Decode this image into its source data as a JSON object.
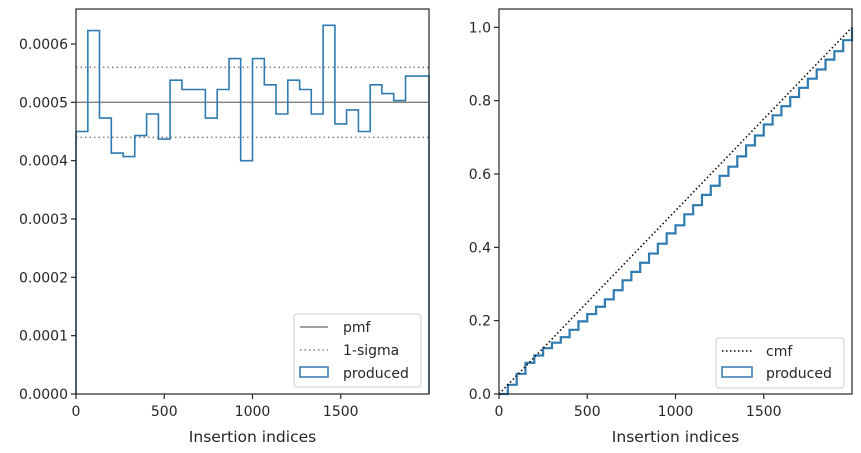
{
  "chart_data": [
    {
      "type": "histogram-step",
      "xlabel": "Insertion indices",
      "ylabel": "",
      "xlim": [
        0,
        2000
      ],
      "ylim": [
        0,
        0.00066
      ],
      "xticks": [
        "0",
        "500",
        "1000",
        "1500"
      ],
      "xtick_values": [
        0,
        500,
        1000,
        1500
      ],
      "yticks": [
        "0.0000",
        "0.0001",
        "0.0002",
        "0.0003",
        "0.0004",
        "0.0005",
        "0.0006"
      ],
      "ytick_values": [
        0,
        0.0001,
        0.0002,
        0.0003,
        0.0004,
        0.0005,
        0.0006
      ],
      "legend_position": "lower-right",
      "reference_lines": [
        {
          "name": "pmf",
          "value": 0.0005,
          "style": "solid",
          "color": "#808080"
        },
        {
          "name": "1-sigma",
          "values": [
            0.00056,
            0.00044
          ],
          "style": "dotted",
          "color": "#808080"
        }
      ],
      "series": [
        {
          "name": "produced",
          "color": "#2f7bb0",
          "bin_edges": [
            0,
            67,
            133,
            200,
            267,
            333,
            400,
            467,
            533,
            600,
            667,
            733,
            800,
            867,
            933,
            1000,
            1067,
            1133,
            1200,
            1267,
            1333,
            1400,
            1467,
            1533,
            1600,
            1667,
            1733,
            1800,
            1867,
            1933,
            2000
          ],
          "values": [
            0.00045,
            0.000623,
            0.000473,
            0.000413,
            0.000407,
            0.000443,
            0.00048,
            0.000437,
            0.000538,
            0.000522,
            0.000522,
            0.000473,
            0.000522,
            0.000575,
            0.0004,
            0.000575,
            0.00053,
            0.00048,
            0.000538,
            0.000522,
            0.00048,
            0.000632,
            0.000463,
            0.000487,
            0.00045,
            0.00053,
            0.000515,
            0.000503,
            0.000545,
            0.000545
          ]
        }
      ]
    },
    {
      "type": "line",
      "xlabel": "Insertion indices",
      "ylabel": "",
      "xlim": [
        0,
        2000
      ],
      "ylim": [
        0,
        1.05
      ],
      "xticks": [
        "0",
        "500",
        "1000",
        "1500"
      ],
      "xtick_values": [
        0,
        500,
        1000,
        1500
      ],
      "yticks": [
        "0.0",
        "0.2",
        "0.4",
        "0.6",
        "0.8",
        "1.0"
      ],
      "ytick_values": [
        0,
        0.2,
        0.4,
        0.6,
        0.8,
        1.0
      ],
      "legend_position": "lower-right",
      "series": [
        {
          "name": "cmf",
          "style": "dotted",
          "color": "#000000",
          "x": [
            0,
            2000
          ],
          "y": [
            0,
            1.0
          ]
        },
        {
          "name": "produced",
          "style": "step",
          "color": "#2f7bb0",
          "x": [
            0,
            50,
            100,
            150,
            200,
            250,
            300,
            350,
            400,
            450,
            500,
            550,
            600,
            650,
            700,
            750,
            800,
            850,
            900,
            950,
            1000,
            1050,
            1100,
            1150,
            1200,
            1250,
            1300,
            1350,
            1400,
            1450,
            1500,
            1550,
            1600,
            1650,
            1700,
            1750,
            1800,
            1850,
            1900,
            1950,
            2000
          ],
          "y": [
            0,
            0.025,
            0.055,
            0.085,
            0.105,
            0.125,
            0.14,
            0.155,
            0.175,
            0.198,
            0.218,
            0.238,
            0.258,
            0.283,
            0.31,
            0.333,
            0.358,
            0.383,
            0.41,
            0.438,
            0.46,
            0.49,
            0.515,
            0.543,
            0.568,
            0.595,
            0.62,
            0.648,
            0.678,
            0.705,
            0.735,
            0.76,
            0.785,
            0.81,
            0.835,
            0.86,
            0.885,
            0.912,
            0.935,
            0.965,
            1.0
          ]
        }
      ]
    }
  ]
}
